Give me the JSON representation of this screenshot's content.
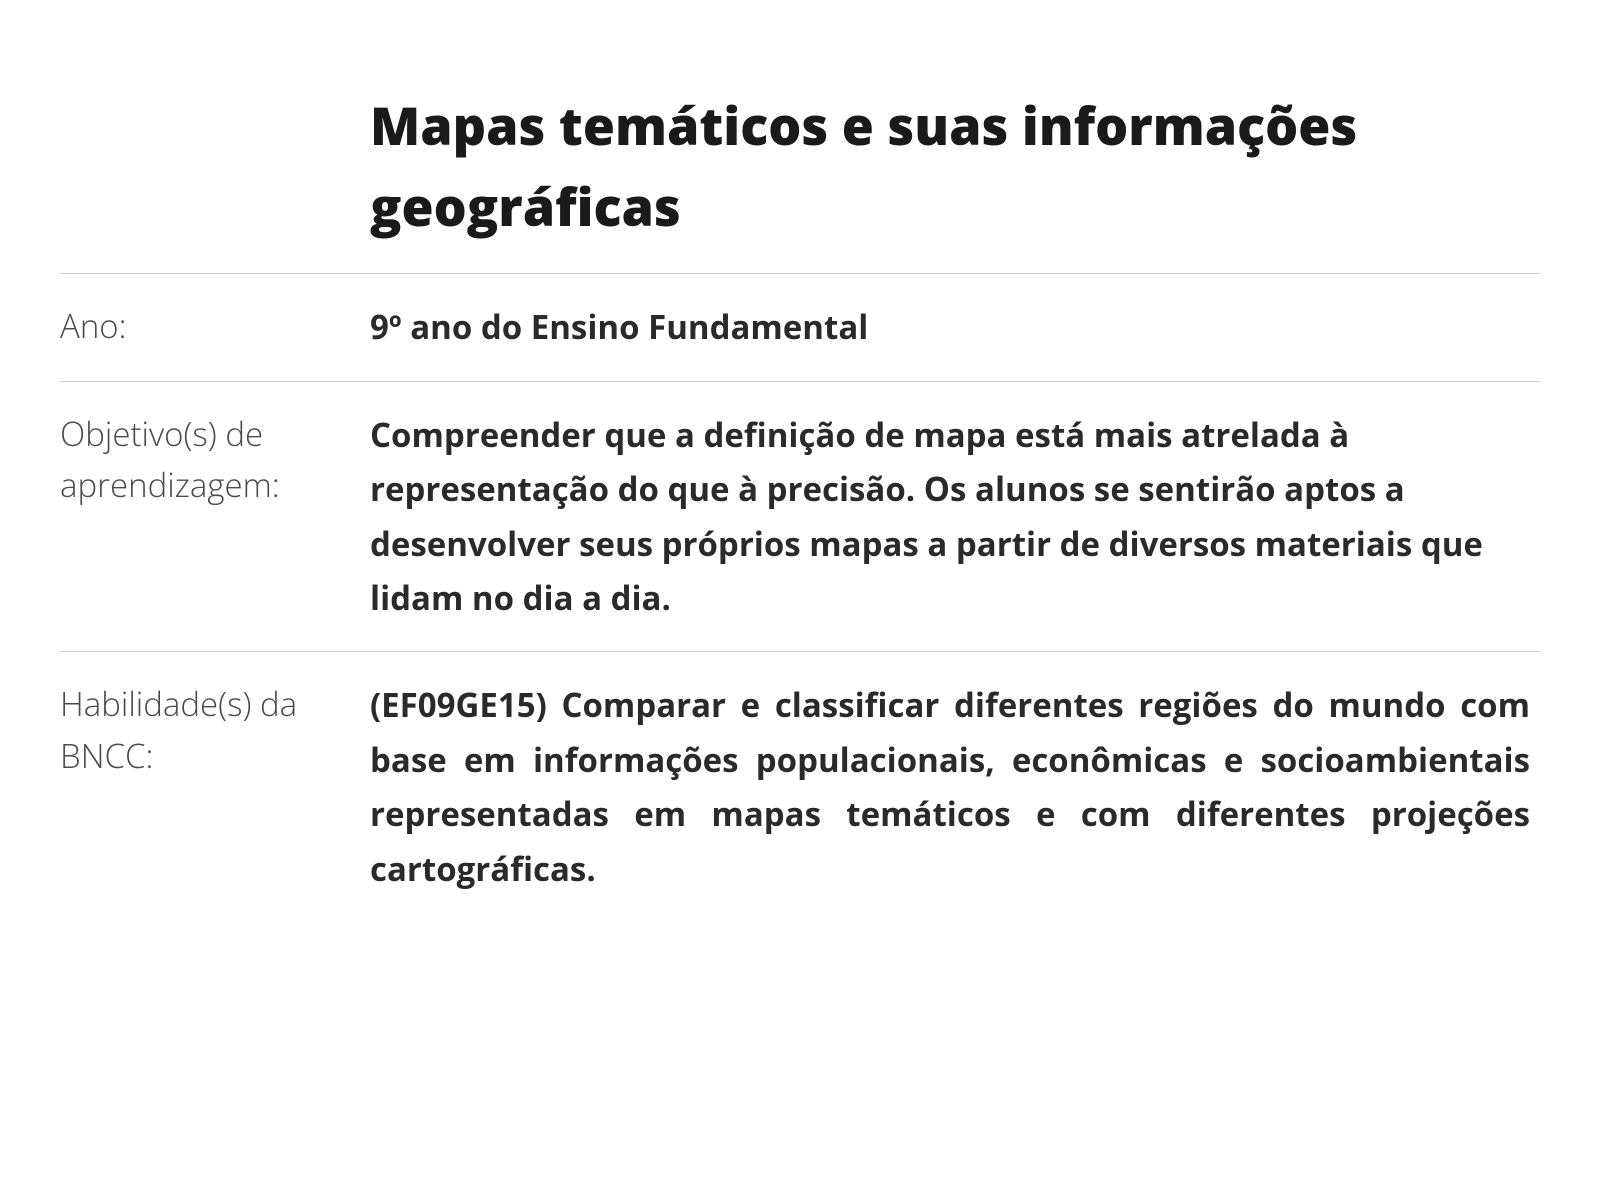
{
  "title": "Mapas temáticos e suas informações geográficas",
  "rows": [
    {
      "label": "Ano:",
      "value": "9º ano do Ensino Fundamental",
      "justify": false
    },
    {
      "label": "Objetivo(s) de aprendizagem:",
      "value": "Compreender que a definição de mapa está mais atrelada à representação do que à precisão. Os alunos se sentirão aptos a desenvolver seus próprios mapas a partir de diversos materiais que lidam no dia a dia.",
      "justify": false
    },
    {
      "label": "Habilidade(s) da BNCC:",
      "value": "(EF09GE15) Comparar e classificar diferentes regiões do mundo com base em informações populacionais, econômicas e socioambientais representadas em mapas temáticos e com diferentes projeções cartográficas.",
      "justify": true
    }
  ],
  "styles": {
    "background_color": "#ffffff",
    "text_color": "#2a2a2a",
    "label_color": "#4a4a4a",
    "border_color": "#d0d0d0",
    "title_fontsize": 52,
    "body_fontsize": 33,
    "title_weight": 800,
    "value_weight": 700,
    "label_weight": 300,
    "label_column_width": 310
  }
}
